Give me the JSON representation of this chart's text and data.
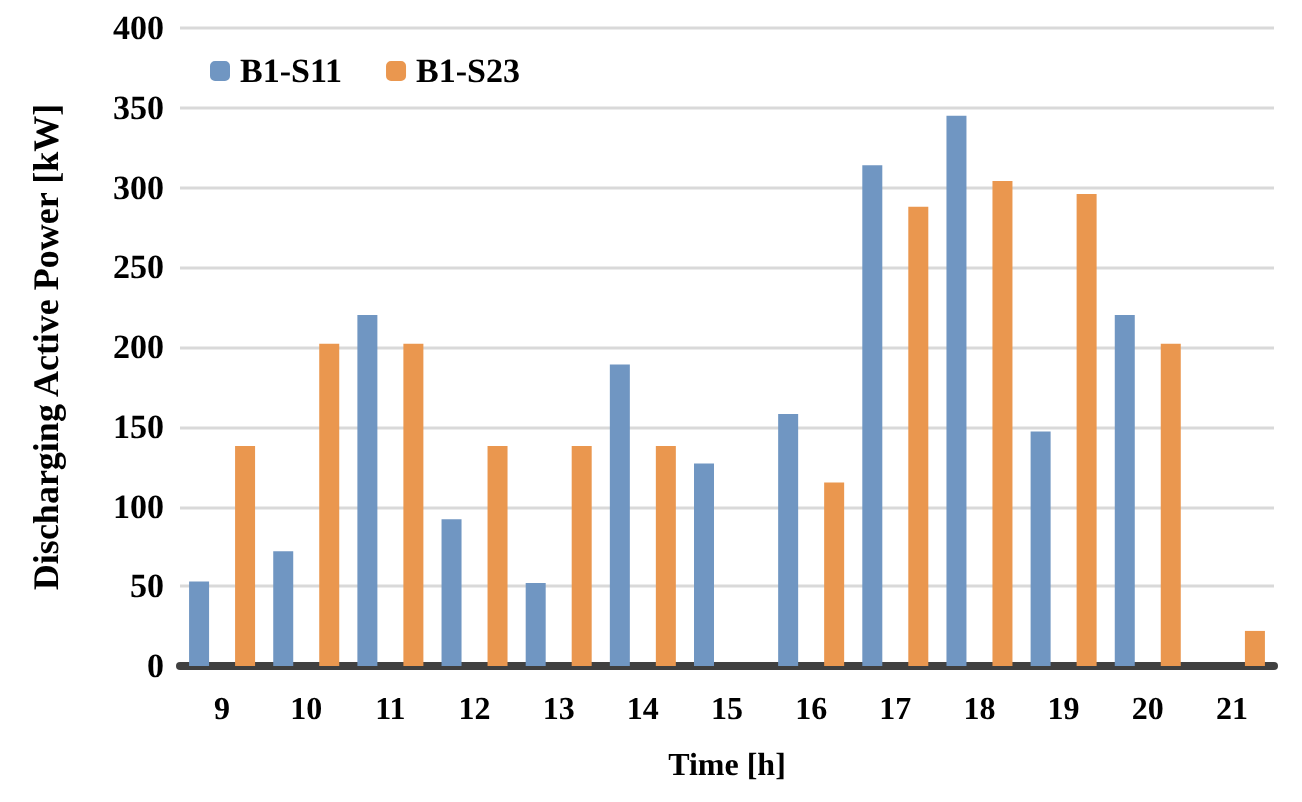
{
  "chart_data": {
    "type": "bar",
    "xlabel": "Time [h]",
    "ylabel": "Discharging Active Power [kW]",
    "categories": [
      "9",
      "10",
      "11",
      "12",
      "13",
      "14",
      "15",
      "16",
      "17",
      "18",
      "19",
      "20",
      "21"
    ],
    "series": [
      {
        "name": "B1-S11",
        "color": "#7096c2",
        "values": [
          53,
          72,
          220,
          92,
          52,
          189,
          127,
          158,
          314,
          345,
          147,
          220,
          0
        ]
      },
      {
        "name": "B1-S23",
        "color": "#ea974f",
        "values": [
          138,
          202,
          202,
          138,
          138,
          138,
          0,
          115,
          288,
          304,
          296,
          202,
          22
        ]
      }
    ],
    "ylim": [
      0,
      400
    ],
    "yticks": [
      0,
      50,
      100,
      150,
      200,
      250,
      300,
      350,
      400
    ],
    "grid": "y",
    "legend": "top left"
  }
}
